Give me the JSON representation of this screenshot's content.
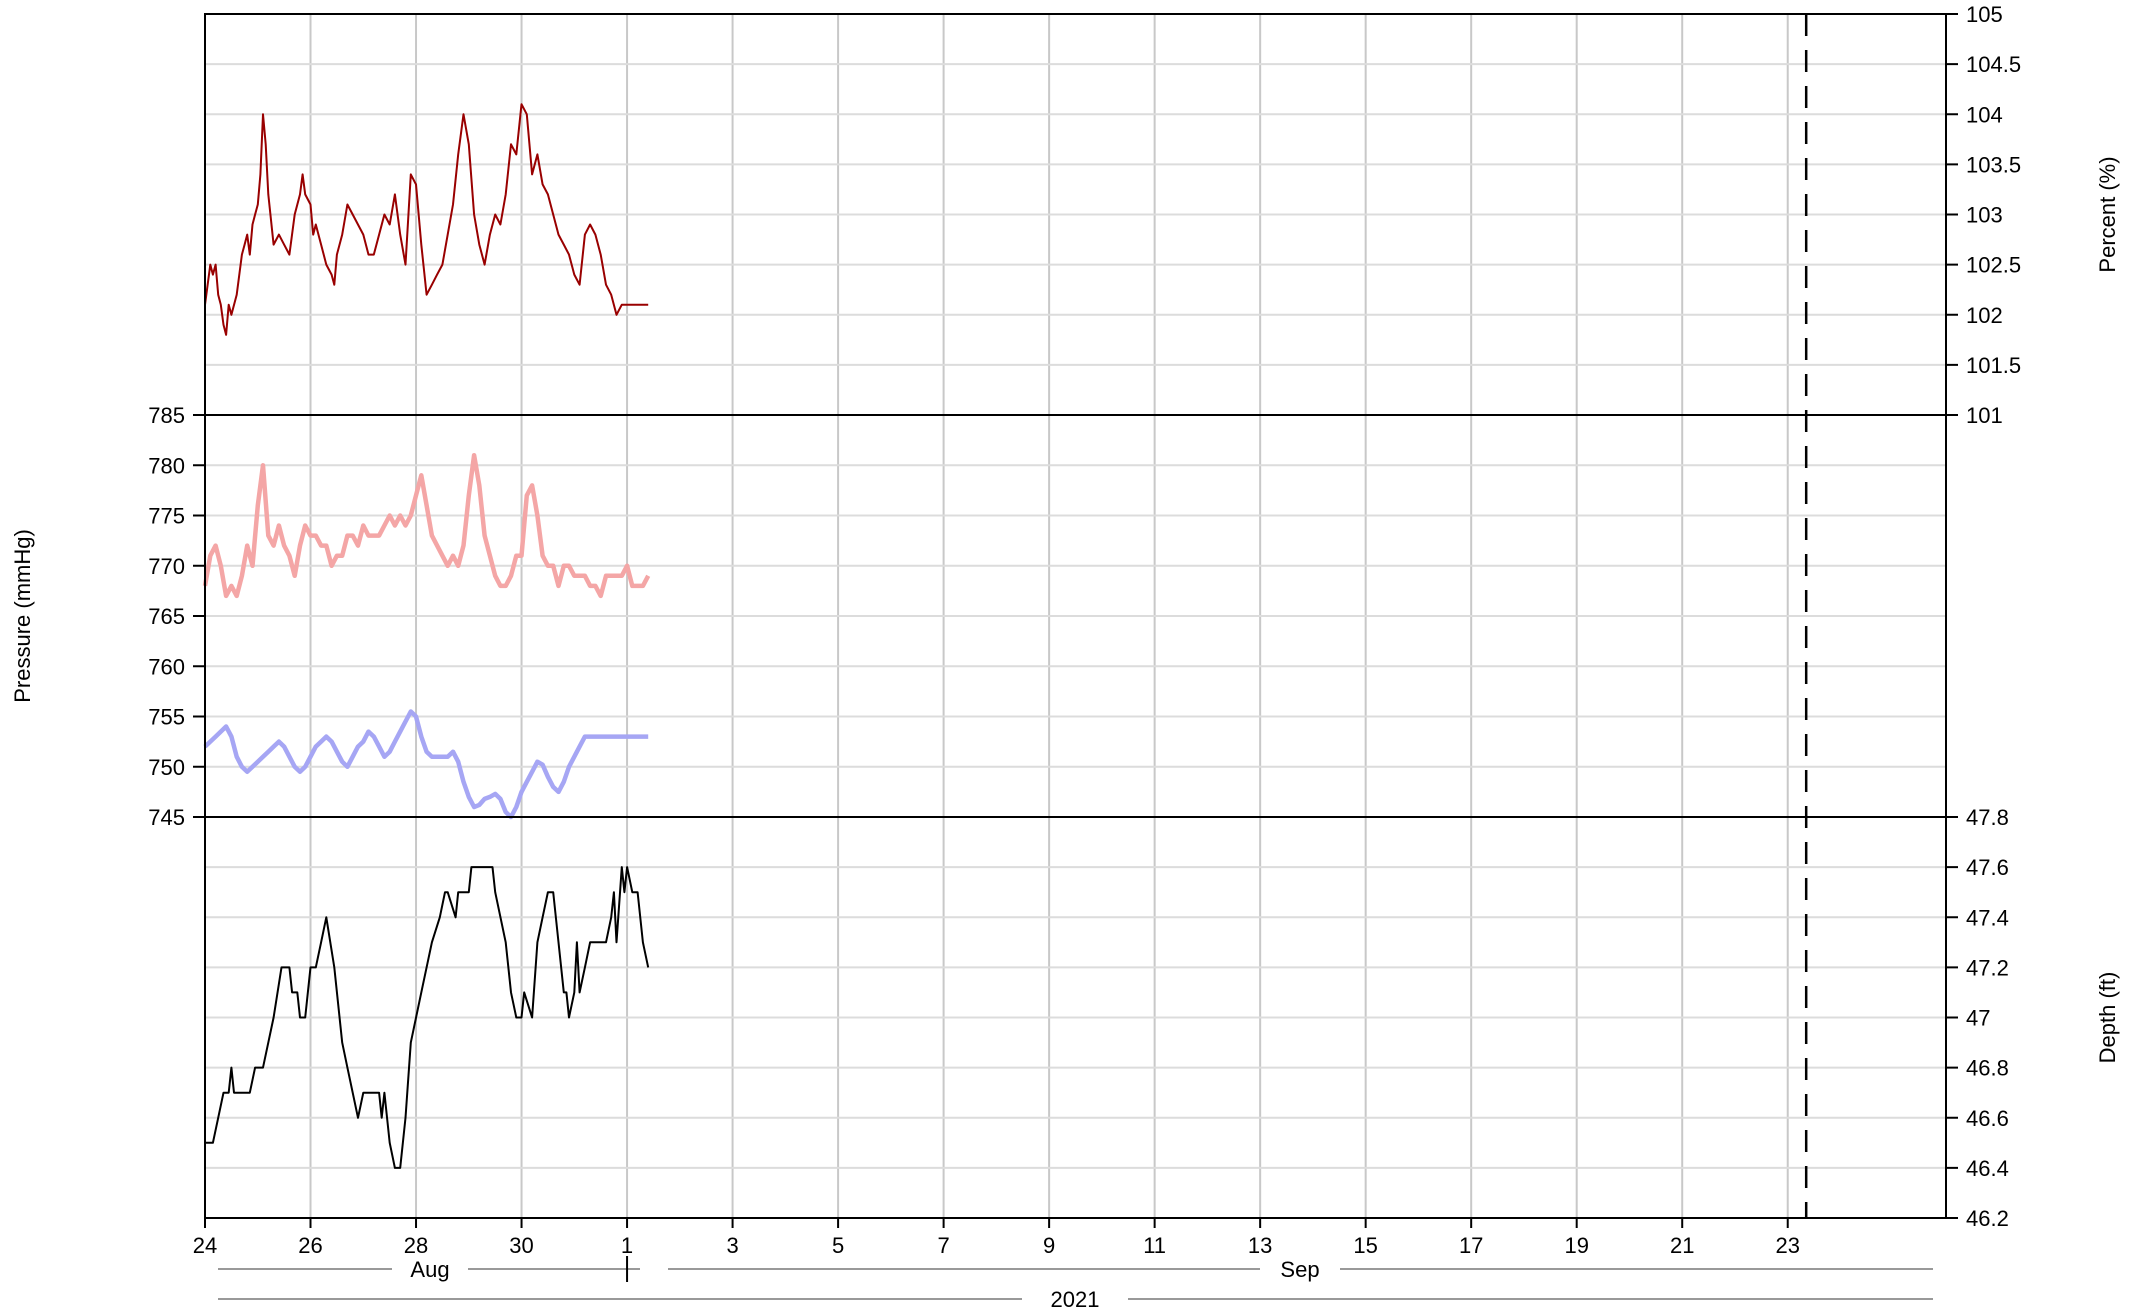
{
  "chart_data": {
    "type": "line",
    "x_range_days": [
      0,
      33
    ],
    "x_ticks": [
      {
        "day": 0,
        "label": "24"
      },
      {
        "day": 2,
        "label": "26"
      },
      {
        "day": 4,
        "label": "28"
      },
      {
        "day": 6,
        "label": "30"
      },
      {
        "day": 8,
        "label": "1"
      },
      {
        "day": 10,
        "label": "3"
      },
      {
        "day": 12,
        "label": "5"
      },
      {
        "day": 14,
        "label": "7"
      },
      {
        "day": 16,
        "label": "9"
      },
      {
        "day": 18,
        "label": "11"
      },
      {
        "day": 20,
        "label": "13"
      },
      {
        "day": 22,
        "label": "15"
      },
      {
        "day": 24,
        "label": "17"
      },
      {
        "day": 26,
        "label": "19"
      },
      {
        "day": 28,
        "label": "21"
      },
      {
        "day": 30,
        "label": "23"
      }
    ],
    "month_labels": [
      {
        "label": "Aug"
      },
      {
        "label": "Sep"
      }
    ],
    "year_label": "2021",
    "reference_line_day": 30.35,
    "panels": [
      {
        "id": "percent",
        "ylabel": "Percent (%)",
        "axis_side": "right",
        "ylim": [
          101,
          105
        ],
        "yticks": [
          101,
          101.5,
          102,
          102.5,
          103,
          103.5,
          104,
          104.5,
          105
        ],
        "ytick_labels": [
          "101",
          "101.5",
          "102",
          "102.5",
          "103",
          "103.5",
          "104",
          "104.5",
          "105"
        ],
        "series": [
          {
            "color": "#990000",
            "x": [
              0,
              0.1,
              0.15,
              0.2,
              0.25,
              0.3,
              0.35,
              0.4,
              0.45,
              0.5,
              0.6,
              0.7,
              0.75,
              0.8,
              0.85,
              0.9,
              0.95,
              1.0,
              1.05,
              1.1,
              1.15,
              1.2,
              1.3,
              1.4,
              1.5,
              1.6,
              1.7,
              1.8,
              1.85,
              1.9,
              2.0,
              2.05,
              2.1,
              2.2,
              2.3,
              2.4,
              2.45,
              2.5,
              2.6,
              2.7,
              2.8,
              3.0,
              3.1,
              3.2,
              3.3,
              3.4,
              3.5,
              3.6,
              3.7,
              3.8,
              3.9,
              4.0,
              4.1,
              4.2,
              4.3,
              4.4,
              4.5,
              4.6,
              4.7,
              4.8,
              4.9,
              5.0,
              5.1,
              5.2,
              5.3,
              5.4,
              5.5,
              5.6,
              5.7,
              5.8,
              5.9,
              6.0,
              6.1,
              6.2,
              6.3,
              6.4,
              6.5,
              6.6,
              6.7,
              6.8,
              6.9,
              7.0,
              7.1,
              7.2,
              7.3,
              7.4,
              7.5,
              7.6,
              7.7,
              7.8,
              7.9,
              8.0,
              8.1,
              8.2,
              8.3,
              8.4
            ],
            "y": [
              102.1,
              102.5,
              102.4,
              102.5,
              102.2,
              102.1,
              101.9,
              101.8,
              102.1,
              102.0,
              102.2,
              102.6,
              102.7,
              102.8,
              102.6,
              102.9,
              103.0,
              103.1,
              103.4,
              104.0,
              103.7,
              103.2,
              102.7,
              102.8,
              102.7,
              102.6,
              103.0,
              103.2,
              103.4,
              103.2,
              103.1,
              102.8,
              102.9,
              102.7,
              102.5,
              102.4,
              102.3,
              102.6,
              102.8,
              103.1,
              103.0,
              102.8,
              102.6,
              102.6,
              102.8,
              103.0,
              102.9,
              103.2,
              102.8,
              102.5,
              103.4,
              103.3,
              102.7,
              102.2,
              102.3,
              102.4,
              102.5,
              102.8,
              103.1,
              103.6,
              104.0,
              103.7,
              103.0,
              102.7,
              102.5,
              102.8,
              103.0,
              102.9,
              103.2,
              103.7,
              103.6,
              104.1,
              104.0,
              103.4,
              103.6,
              103.3,
              103.2,
              103.0,
              102.8,
              102.7,
              102.6,
              102.4,
              102.3,
              102.8,
              102.9,
              102.8,
              102.6,
              102.3,
              102.2,
              102.0,
              102.1,
              102.1,
              102.1,
              102.1,
              102.1,
              102.1
            ]
          }
        ]
      },
      {
        "id": "pressure",
        "ylabel": "Pressure (mmHg)",
        "axis_side": "left",
        "ylim": [
          745,
          785
        ],
        "yticks": [
          745,
          750,
          755,
          760,
          765,
          770,
          775,
          780,
          785
        ],
        "ytick_labels": [
          "745",
          "750",
          "755",
          "760",
          "765",
          "770",
          "775",
          "780",
          "785"
        ],
        "series": [
          {
            "color": "#f4a6a6",
            "x": [
              0,
              0.1,
              0.2,
              0.3,
              0.4,
              0.5,
              0.6,
              0.7,
              0.8,
              0.9,
              1.0,
              1.1,
              1.2,
              1.3,
              1.4,
              1.5,
              1.6,
              1.7,
              1.8,
              1.9,
              2.0,
              2.1,
              2.2,
              2.3,
              2.4,
              2.5,
              2.6,
              2.7,
              2.8,
              2.9,
              3.0,
              3.1,
              3.2,
              3.3,
              3.4,
              3.5,
              3.6,
              3.7,
              3.8,
              3.9,
              4.0,
              4.1,
              4.2,
              4.3,
              4.4,
              4.5,
              4.6,
              4.7,
              4.8,
              4.9,
              5.0,
              5.1,
              5.2,
              5.3,
              5.4,
              5.5,
              5.6,
              5.7,
              5.8,
              5.9,
              6.0,
              6.1,
              6.2,
              6.3,
              6.4,
              6.5,
              6.6,
              6.7,
              6.8,
              6.9,
              7.0,
              7.1,
              7.2,
              7.3,
              7.4,
              7.5,
              7.6,
              7.7,
              7.8,
              7.9,
              8.0,
              8.1,
              8.2,
              8.3,
              8.4
            ],
            "y": [
              768,
              771,
              772,
              770,
              767,
              768,
              767,
              769,
              772,
              770,
              776,
              780,
              773,
              772,
              774,
              772,
              771,
              769,
              772,
              774,
              773,
              773,
              772,
              772,
              770,
              771,
              771,
              773,
              773,
              772,
              774,
              773,
              773,
              773,
              774,
              775,
              774,
              775,
              774,
              775,
              777,
              779,
              776,
              773,
              772,
              771,
              770,
              771,
              770,
              772,
              777,
              781,
              778,
              773,
              771,
              769,
              768,
              768,
              769,
              771,
              771,
              777,
              778,
              775,
              771,
              770,
              770,
              768,
              770,
              770,
              769,
              769,
              769,
              768,
              768,
              767,
              769,
              769,
              769,
              769,
              770,
              768,
              768,
              768,
              769
            ]
          },
          {
            "color": "#a6a6f4",
            "x": [
              0,
              0.2,
              0.4,
              0.5,
              0.6,
              0.7,
              0.8,
              0.9,
              1.0,
              1.1,
              1.2,
              1.3,
              1.4,
              1.5,
              1.6,
              1.7,
              1.8,
              1.9,
              2.0,
              2.1,
              2.2,
              2.3,
              2.4,
              2.5,
              2.6,
              2.7,
              2.8,
              2.9,
              3.0,
              3.1,
              3.2,
              3.3,
              3.4,
              3.5,
              3.6,
              3.7,
              3.8,
              3.9,
              4.0,
              4.1,
              4.2,
              4.3,
              4.4,
              4.5,
              4.6,
              4.7,
              4.8,
              4.9,
              5.0,
              5.1,
              5.2,
              5.3,
              5.4,
              5.5,
              5.6,
              5.7,
              5.8,
              5.9,
              6.0,
              6.1,
              6.2,
              6.3,
              6.4,
              6.5,
              6.6,
              6.7,
              6.8,
              6.9,
              7.0,
              7.1,
              7.2,
              7.3,
              7.4,
              7.5,
              7.6,
              7.7,
              7.8,
              7.9,
              8.0,
              8.1,
              8.2,
              8.3,
              8.4
            ],
            "y": [
              752,
              753,
              754,
              753,
              751,
              750,
              749.5,
              750,
              750.5,
              751,
              751.5,
              752,
              752.5,
              752,
              751,
              750,
              749.5,
              750,
              751,
              752,
              752.5,
              753,
              752.5,
              751.5,
              750.5,
              750,
              751,
              752,
              752.5,
              753.5,
              753,
              752,
              751,
              751.5,
              752.5,
              753.5,
              754.5,
              755.5,
              755,
              753,
              751.5,
              751,
              751,
              751,
              751,
              751.5,
              750.5,
              748.5,
              747,
              746,
              746.2,
              746.8,
              747,
              747.3,
              746.8,
              745.5,
              745,
              746,
              747.5,
              748.5,
              749.5,
              750.5,
              750.2,
              749,
              748,
              747.5,
              748.5,
              750,
              751,
              752,
              753,
              753,
              753,
              753,
              753,
              753,
              753,
              753,
              753,
              753,
              753,
              753,
              753
            ]
          }
        ]
      },
      {
        "id": "depth",
        "ylabel": "Depth (ft)",
        "axis_side": "right",
        "ylim": [
          46.2,
          47.8
        ],
        "yticks": [
          46.2,
          46.4,
          46.6,
          46.8,
          47.0,
          47.2,
          47.4,
          47.6,
          47.8
        ],
        "ytick_labels": [
          "46.2",
          "46.4",
          "46.6",
          "46.8",
          "47",
          "47.2",
          "47.4",
          "47.6",
          "47.8"
        ],
        "series": [
          {
            "color": "#000000",
            "x": [
              0,
              0.15,
              0.25,
              0.35,
              0.45,
              0.5,
              0.55,
              0.85,
              0.95,
              1.1,
              1.2,
              1.3,
              1.45,
              1.6,
              1.65,
              1.75,
              1.8,
              1.9,
              2.0,
              2.1,
              2.2,
              2.3,
              2.45,
              2.6,
              2.7,
              2.8,
              2.9,
              3.0,
              3.1,
              3.2,
              3.3,
              3.35,
              3.4,
              3.5,
              3.6,
              3.7,
              3.8,
              3.9,
              4.1,
              4.3,
              4.45,
              4.55,
              4.6,
              4.75,
              4.8,
              5.0,
              5.05,
              5.2,
              5.45,
              5.5,
              5.7,
              5.8,
              5.9,
              6.0,
              6.05,
              6.2,
              6.3,
              6.4,
              6.5,
              6.6,
              6.7,
              6.8,
              6.85,
              6.9,
              7.0,
              7.05,
              7.1,
              7.2,
              7.3,
              7.5,
              7.6,
              7.7,
              7.75,
              7.8,
              7.9,
              7.95,
              8.0,
              8.1,
              8.2,
              8.3,
              8.4
            ],
            "y": [
              46.5,
              46.5,
              46.6,
              46.7,
              46.7,
              46.8,
              46.7,
              46.7,
              46.8,
              46.8,
              46.9,
              47.0,
              47.2,
              47.2,
              47.1,
              47.1,
              47.0,
              47.0,
              47.2,
              47.2,
              47.3,
              47.4,
              47.2,
              46.9,
              46.8,
              46.7,
              46.6,
              46.7,
              46.7,
              46.7,
              46.7,
              46.6,
              46.7,
              46.5,
              46.4,
              46.4,
              46.6,
              46.9,
              47.1,
              47.3,
              47.4,
              47.5,
              47.5,
              47.4,
              47.5,
              47.5,
              47.6,
              47.6,
              47.6,
              47.5,
              47.3,
              47.1,
              47.0,
              47.0,
              47.1,
              47.0,
              47.3,
              47.4,
              47.5,
              47.5,
              47.3,
              47.1,
              47.1,
              47.0,
              47.1,
              47.3,
              47.1,
              47.2,
              47.3,
              47.3,
              47.3,
              47.4,
              47.5,
              47.3,
              47.6,
              47.5,
              47.6,
              47.5,
              47.5,
              47.3,
              47.2
            ]
          }
        ]
      }
    ]
  }
}
